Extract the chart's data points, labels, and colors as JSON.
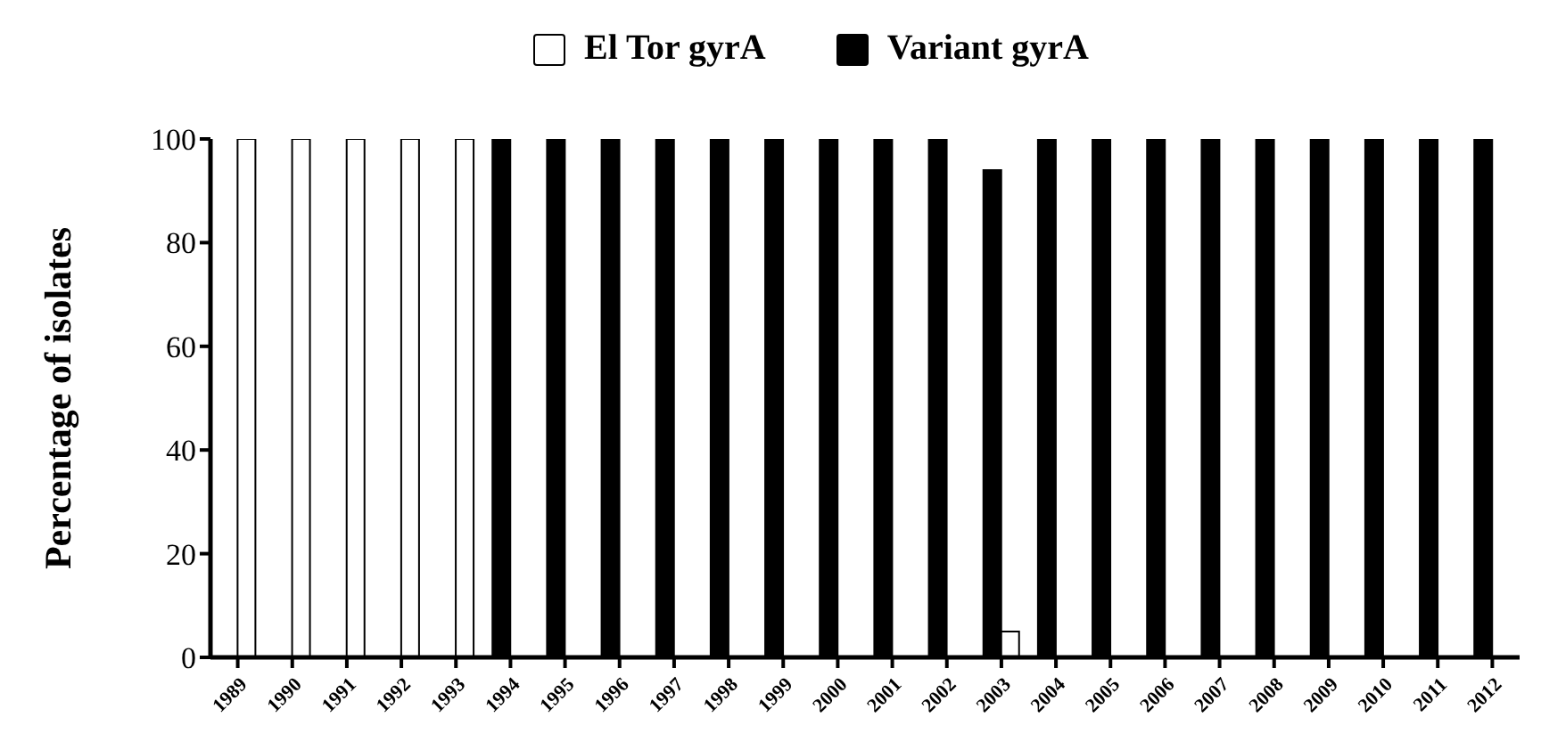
{
  "chart_data": {
    "type": "bar",
    "ylabel": "Percentage of isolates",
    "categories": [
      "1989",
      "1990",
      "1991",
      "1992",
      "1993",
      "1994",
      "1995",
      "1996",
      "1997",
      "1998",
      "1999",
      "2000",
      "2001",
      "2002",
      "2003",
      "2004",
      "2005",
      "2006",
      "2007",
      "2008",
      "2009",
      "2010",
      "2011",
      "2012"
    ],
    "series": [
      {
        "name": "El Tor gyrA",
        "color": "#ffffff",
        "values": [
          100,
          100,
          100,
          100,
          100,
          0,
          0,
          0,
          0,
          0,
          0,
          0,
          0,
          0,
          5,
          0,
          0,
          0,
          0,
          0,
          0,
          0,
          0,
          0
        ]
      },
      {
        "name": "Variant gyrA",
        "color": "#000000",
        "values": [
          0,
          0,
          0,
          0,
          0,
          100,
          100,
          100,
          100,
          100,
          100,
          100,
          100,
          100,
          94,
          100,
          100,
          100,
          100,
          100,
          100,
          100,
          100,
          100
        ]
      }
    ],
    "ylim": [
      0,
      100
    ],
    "yticks": [
      0,
      20,
      40,
      60,
      80,
      100
    ],
    "grid": false,
    "legend": "top"
  }
}
